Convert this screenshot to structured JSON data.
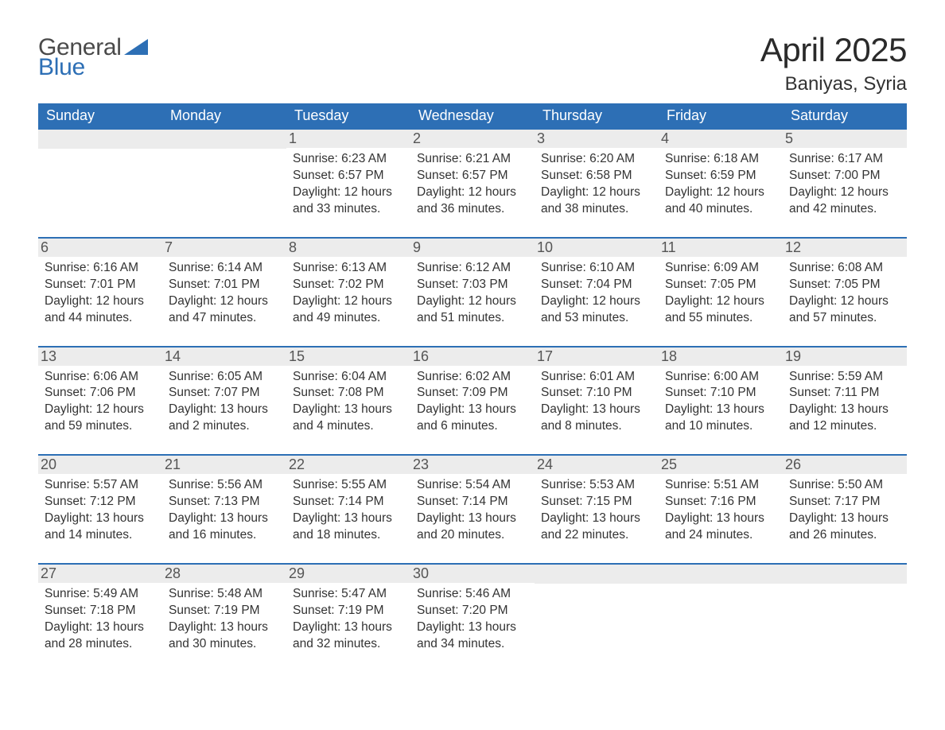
{
  "logo": {
    "line1": "General",
    "line2": "Blue",
    "flag_color": "#2d6fb5",
    "text_gray": "#4a4a4a"
  },
  "title": "April 2025",
  "location": "Baniyas, Syria",
  "colors": {
    "header_bg": "#2d6fb5",
    "header_text": "#ffffff",
    "daynum_bg": "#ececec",
    "daynum_text": "#555555",
    "row_border": "#2d6fb5",
    "body_text": "#333333",
    "page_bg": "#ffffff"
  },
  "weekdays": [
    "Sunday",
    "Monday",
    "Tuesday",
    "Wednesday",
    "Thursday",
    "Friday",
    "Saturday"
  ],
  "weeks": [
    [
      null,
      null,
      {
        "n": "1",
        "sunrise": "6:23 AM",
        "sunset": "6:57 PM",
        "daylight": "12 hours and 33 minutes."
      },
      {
        "n": "2",
        "sunrise": "6:21 AM",
        "sunset": "6:57 PM",
        "daylight": "12 hours and 36 minutes."
      },
      {
        "n": "3",
        "sunrise": "6:20 AM",
        "sunset": "6:58 PM",
        "daylight": "12 hours and 38 minutes."
      },
      {
        "n": "4",
        "sunrise": "6:18 AM",
        "sunset": "6:59 PM",
        "daylight": "12 hours and 40 minutes."
      },
      {
        "n": "5",
        "sunrise": "6:17 AM",
        "sunset": "7:00 PM",
        "daylight": "12 hours and 42 minutes."
      }
    ],
    [
      {
        "n": "6",
        "sunrise": "6:16 AM",
        "sunset": "7:01 PM",
        "daylight": "12 hours and 44 minutes."
      },
      {
        "n": "7",
        "sunrise": "6:14 AM",
        "sunset": "7:01 PM",
        "daylight": "12 hours and 47 minutes."
      },
      {
        "n": "8",
        "sunrise": "6:13 AM",
        "sunset": "7:02 PM",
        "daylight": "12 hours and 49 minutes."
      },
      {
        "n": "9",
        "sunrise": "6:12 AM",
        "sunset": "7:03 PM",
        "daylight": "12 hours and 51 minutes."
      },
      {
        "n": "10",
        "sunrise": "6:10 AM",
        "sunset": "7:04 PM",
        "daylight": "12 hours and 53 minutes."
      },
      {
        "n": "11",
        "sunrise": "6:09 AM",
        "sunset": "7:05 PM",
        "daylight": "12 hours and 55 minutes."
      },
      {
        "n": "12",
        "sunrise": "6:08 AM",
        "sunset": "7:05 PM",
        "daylight": "12 hours and 57 minutes."
      }
    ],
    [
      {
        "n": "13",
        "sunrise": "6:06 AM",
        "sunset": "7:06 PM",
        "daylight": "12 hours and 59 minutes."
      },
      {
        "n": "14",
        "sunrise": "6:05 AM",
        "sunset": "7:07 PM",
        "daylight": "13 hours and 2 minutes."
      },
      {
        "n": "15",
        "sunrise": "6:04 AM",
        "sunset": "7:08 PM",
        "daylight": "13 hours and 4 minutes."
      },
      {
        "n": "16",
        "sunrise": "6:02 AM",
        "sunset": "7:09 PM",
        "daylight": "13 hours and 6 minutes."
      },
      {
        "n": "17",
        "sunrise": "6:01 AM",
        "sunset": "7:10 PM",
        "daylight": "13 hours and 8 minutes."
      },
      {
        "n": "18",
        "sunrise": "6:00 AM",
        "sunset": "7:10 PM",
        "daylight": "13 hours and 10 minutes."
      },
      {
        "n": "19",
        "sunrise": "5:59 AM",
        "sunset": "7:11 PM",
        "daylight": "13 hours and 12 minutes."
      }
    ],
    [
      {
        "n": "20",
        "sunrise": "5:57 AM",
        "sunset": "7:12 PM",
        "daylight": "13 hours and 14 minutes."
      },
      {
        "n": "21",
        "sunrise": "5:56 AM",
        "sunset": "7:13 PM",
        "daylight": "13 hours and 16 minutes."
      },
      {
        "n": "22",
        "sunrise": "5:55 AM",
        "sunset": "7:14 PM",
        "daylight": "13 hours and 18 minutes."
      },
      {
        "n": "23",
        "sunrise": "5:54 AM",
        "sunset": "7:14 PM",
        "daylight": "13 hours and 20 minutes."
      },
      {
        "n": "24",
        "sunrise": "5:53 AM",
        "sunset": "7:15 PM",
        "daylight": "13 hours and 22 minutes."
      },
      {
        "n": "25",
        "sunrise": "5:51 AM",
        "sunset": "7:16 PM",
        "daylight": "13 hours and 24 minutes."
      },
      {
        "n": "26",
        "sunrise": "5:50 AM",
        "sunset": "7:17 PM",
        "daylight": "13 hours and 26 minutes."
      }
    ],
    [
      {
        "n": "27",
        "sunrise": "5:49 AM",
        "sunset": "7:18 PM",
        "daylight": "13 hours and 28 minutes."
      },
      {
        "n": "28",
        "sunrise": "5:48 AM",
        "sunset": "7:19 PM",
        "daylight": "13 hours and 30 minutes."
      },
      {
        "n": "29",
        "sunrise": "5:47 AM",
        "sunset": "7:19 PM",
        "daylight": "13 hours and 32 minutes."
      },
      {
        "n": "30",
        "sunrise": "5:46 AM",
        "sunset": "7:20 PM",
        "daylight": "13 hours and 34 minutes."
      },
      null,
      null,
      null
    ]
  ],
  "labels": {
    "sunrise": "Sunrise: ",
    "sunset": "Sunset: ",
    "daylight": "Daylight: "
  }
}
